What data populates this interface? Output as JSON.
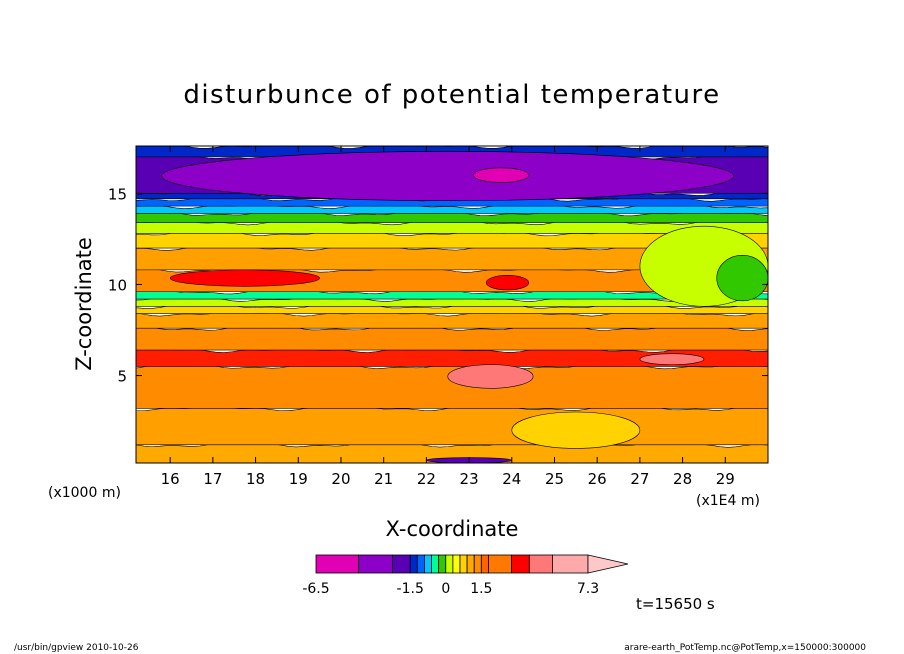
{
  "chart_data": {
    "type": "heatmap",
    "title": "disturbunce of potential temperature",
    "xlabel": "X-coordinate",
    "ylabel": "Z-coordinate",
    "x_unit_left": "(x1000 m)",
    "x_unit_right": "(x1E4 m)",
    "xlim": [
      15.2,
      30.0
    ],
    "ylim": [
      0.2,
      17.6
    ],
    "x_ticks": [
      "16",
      "17",
      "18",
      "19",
      "20",
      "21",
      "22",
      "23",
      "24",
      "25",
      "26",
      "27",
      "28",
      "29"
    ],
    "x_tick_values": [
      16,
      17,
      18,
      19,
      20,
      21,
      22,
      23,
      24,
      25,
      26,
      27,
      28,
      29
    ],
    "y_ticks": [
      "5",
      "10",
      "15"
    ],
    "y_tick_values": [
      5,
      10,
      15
    ],
    "time_label": "t=15650 s",
    "colorbar": {
      "min_label": "-6.5",
      "labels": [
        "-6.5",
        "-1.5",
        "0",
        "1.5",
        "7.3"
      ],
      "label_values": [
        -6.5,
        -1.5,
        0,
        1.5,
        7.3
      ],
      "levels": [
        -6.5,
        -4.5,
        -2.5,
        -1.5,
        -1.2,
        -0.9,
        -0.6,
        -0.3,
        0,
        0.3,
        0.6,
        0.9,
        1.2,
        1.5,
        2.5,
        3.5,
        4.5,
        5.5,
        7.3
      ],
      "colors": [
        "#e100b4",
        "#8c00c8",
        "#5a00b4",
        "#0028c8",
        "#0064ff",
        "#00c8ff",
        "#00ff96",
        "#32c800",
        "#c8ff00",
        "#ffff00",
        "#ffd200",
        "#ffaa00",
        "#ff8c00",
        "#ff6400",
        "#ff7800",
        "#ff0000",
        "#ff7878",
        "#ffaaaa"
      ]
    },
    "bands": [
      {
        "z": [
          0.2,
          1.2
        ],
        "value": 1.4,
        "color": "#ffaa00"
      },
      {
        "z": [
          1.2,
          3.2
        ],
        "value": 2.0,
        "color": "#ffa000"
      },
      {
        "z": [
          3.2,
          5.5
        ],
        "value": 3.0,
        "color": "#ff8c00"
      },
      {
        "z": [
          5.5,
          6.4
        ],
        "value": 4.0,
        "color": "#ff1e00"
      },
      {
        "z": [
          6.4,
          7.6
        ],
        "value": 3.0,
        "color": "#ff8c00"
      },
      {
        "z": [
          7.6,
          8.4
        ],
        "value": 2.0,
        "color": "#ffa000"
      },
      {
        "z": [
          8.4,
          8.8
        ],
        "value": 0.9,
        "color": "#ffd200"
      },
      {
        "z": [
          8.8,
          9.2
        ],
        "value": 0.3,
        "color": "#c8ff00"
      },
      {
        "z": [
          9.2,
          9.6
        ],
        "value": -0.3,
        "color": "#00ff96"
      },
      {
        "z": [
          9.6,
          10.8
        ],
        "value": 2.5,
        "color": "#ff8c00"
      },
      {
        "z": [
          10.8,
          12.0
        ],
        "value": 2.0,
        "color": "#ffa000"
      },
      {
        "z": [
          12.0,
          12.8
        ],
        "value": 1.0,
        "color": "#ffd200"
      },
      {
        "z": [
          12.8,
          13.4
        ],
        "value": 0.3,
        "color": "#c8ff00"
      },
      {
        "z": [
          13.4,
          13.9
        ],
        "value": -0.3,
        "color": "#32c800"
      },
      {
        "z": [
          13.9,
          14.3
        ],
        "value": -0.9,
        "color": "#00c8ff"
      },
      {
        "z": [
          14.3,
          14.7
        ],
        "value": -1.3,
        "color": "#0064ff"
      },
      {
        "z": [
          14.7,
          15.0
        ],
        "value": -1.5,
        "color": "#0028c8"
      },
      {
        "z": [
          15.0,
          17.0
        ],
        "value": -3.0,
        "color": "#5a00b4"
      },
      {
        "z": [
          17.0,
          17.6
        ],
        "value": -1.0,
        "color": "#0028c8"
      }
    ],
    "features": [
      {
        "name": "upper-minimum",
        "x": [
          15.8,
          29.2
        ],
        "z": [
          14.6,
          17.3
        ],
        "value": -4.0,
        "color": "#8c00c8"
      },
      {
        "name": "upper-core",
        "x": [
          23.1,
          24.4
        ],
        "z": [
          15.6,
          16.4
        ],
        "value": -6.0,
        "color": "#e100b4"
      },
      {
        "name": "mid-warm-1",
        "x": [
          16.0,
          19.5
        ],
        "z": [
          9.9,
          10.8
        ],
        "value": 5.0,
        "color": "#ff0000"
      },
      {
        "name": "mid-warm-2",
        "x": [
          23.4,
          24.4
        ],
        "z": [
          9.7,
          10.5
        ],
        "value": 5.0,
        "color": "#ff0000"
      },
      {
        "name": "east-cool",
        "x": [
          27.0,
          30.0
        ],
        "z": [
          8.8,
          13.2
        ],
        "value": 0.5,
        "color": "#c8ff00"
      },
      {
        "name": "east-green",
        "x": [
          28.8,
          30.0
        ],
        "z": [
          9.1,
          11.6
        ],
        "value": -0.3,
        "color": "#32c800"
      },
      {
        "name": "low-max",
        "x": [
          22.5,
          24.5
        ],
        "z": [
          4.3,
          5.6
        ],
        "value": 6.0,
        "color": "#ff7878"
      },
      {
        "name": "low-max-2",
        "x": [
          27.0,
          28.5
        ],
        "z": [
          5.6,
          6.2
        ],
        "value": 6.0,
        "color": "#ff7878"
      },
      {
        "name": "surface-warm",
        "x": [
          24.0,
          27.0
        ],
        "z": [
          1.0,
          3.0
        ],
        "value": 1.4,
        "color": "#ffd200"
      },
      {
        "name": "surface-cool",
        "x": [
          22.0,
          24.0
        ],
        "z": [
          0.2,
          0.5
        ],
        "value": -3.0,
        "color": "#5a00b4"
      }
    ]
  },
  "footer": {
    "left": "/usr/bin/gpview   2010-10-26",
    "right": "arare-earth_PotTemp.nc@PotTemp,x=150000:300000"
  }
}
